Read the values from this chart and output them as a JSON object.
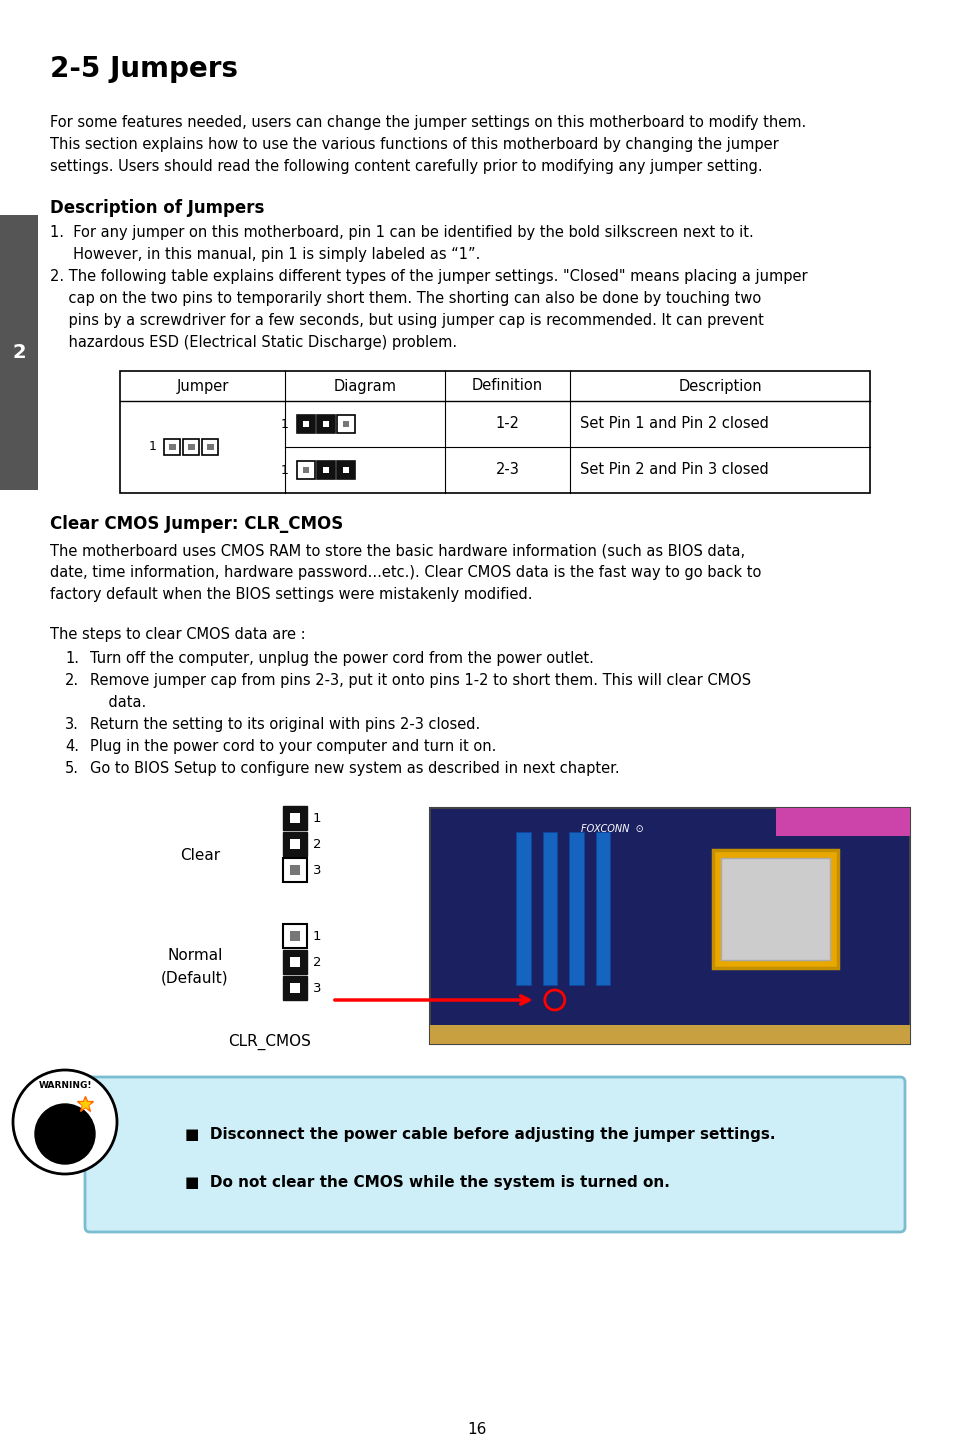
{
  "title": "2-5 Jumpers",
  "bg_color": "#ffffff",
  "page_number": "16",
  "sidebar_color": "#555555",
  "sidebar_label": "2",
  "intro_lines": [
    "For some features needed, users can change the jumper settings on this motherboard to modify them.",
    "This section explains how to use the various functions of this motherboard by changing the jumper",
    "settings. Users should read the following content carefully prior to modifying any jumper setting."
  ],
  "section1_title": "Description of Jumpers",
  "item1_lines": [
    "1.  For any jumper on this motherboard, pin 1 can be identified by the bold silkscreen next to it.",
    "     However, in this manual, pin 1 is simply labeled as “1”."
  ],
  "item2_lines": [
    "2. The following table explains different types of the jumper settings. \"Closed\" means placing a jumper",
    "    cap on the two pins to temporarily short them. The shorting can also be done by touching two",
    "    pins by a screwdriver for a few seconds, but using jumper cap is recommended. It can prevent",
    "    hazardous ESD (Electrical Static Discharge) problem."
  ],
  "table_headers": [
    "Jumper",
    "Diagram",
    "Definition",
    "Description"
  ],
  "table_row1_def": "1-2",
  "table_row1_desc": "Set Pin 1 and Pin 2 closed",
  "table_row2_def": "2-3",
  "table_row2_desc": "Set Pin 2 and Pin 3 closed",
  "section2_title": "Clear CMOS Jumper: CLR_CMOS",
  "section2_lines": [
    "The motherboard uses CMOS RAM to store the basic hardware information (such as BIOS data,",
    "date, time information, hardware password...etc.). Clear CMOS data is the fast way to go back to",
    "factory default when the BIOS settings were mistakenly modified."
  ],
  "steps_intro": "The steps to clear CMOS data are :",
  "steps": [
    [
      "1.",
      "Turn off the computer, unplug the power cord from the power outlet."
    ],
    [
      "2.",
      "Remove jumper cap from pins 2-3, put it onto pins 1-2 to short them. This will clear CMOS"
    ],
    [
      "",
      "    data."
    ],
    [
      "3.",
      "Return the setting to its original with pins 2-3 closed."
    ],
    [
      "4.",
      "Plug in the power cord to your computer and turn it on."
    ],
    [
      "5.",
      "Go to BIOS Setup to configure new system as described in next chapter."
    ]
  ],
  "clear_label": "Clear",
  "normal_label_line1": "Normal",
  "normal_label_line2": "(Default)",
  "clr_cmos_label": "CLR_CMOS",
  "warning_text1": "Disconnect the power cable before adjusting the jumper settings.",
  "warning_text2": "Do not clear the CMOS while the system is turned on.",
  "warning_box_color": "#ceeef8",
  "warning_box_border": "#7abcd0"
}
